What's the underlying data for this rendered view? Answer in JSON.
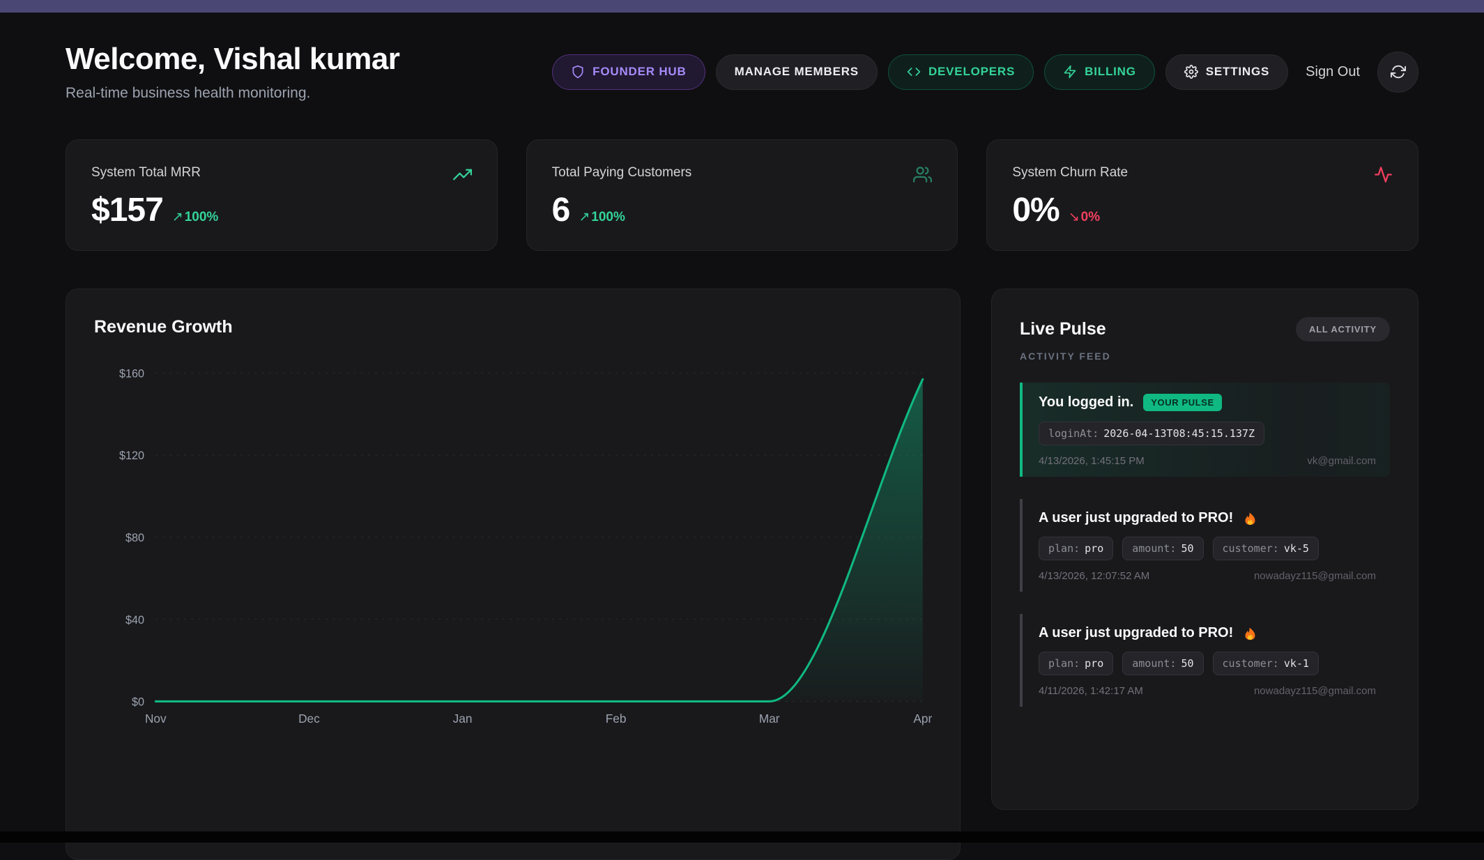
{
  "colors": {
    "accent_green": "#10b981",
    "accent_purple": "#a78bfa",
    "accent_red": "#f43f5e",
    "topbar": "#4b4775"
  },
  "header": {
    "title": "Welcome, Vishal kumar",
    "subtitle": "Real-time business health monitoring.",
    "nav": {
      "founder_hub": "FOUNDER HUB",
      "manage_members": "MANAGE MEMBERS",
      "developers": "DEVELOPERS",
      "billing": "BILLING",
      "settings": "SETTINGS",
      "sign_out": "Sign Out"
    }
  },
  "stats": [
    {
      "label": "System Total MRR",
      "value": "$157",
      "arrow": "↗",
      "delta": "100%",
      "icon": "trending-up-icon"
    },
    {
      "label": "Total Paying Customers",
      "value": "6",
      "arrow": "↗",
      "delta": "100%",
      "icon": "users-icon"
    },
    {
      "label": "System Churn Rate",
      "value": "0%",
      "arrow": "↘",
      "delta": "0%",
      "icon": "activity-icon"
    }
  ],
  "revenue": {
    "title": "Revenue Growth"
  },
  "chart_data": {
    "type": "area",
    "x": [
      "Nov",
      "Dec",
      "Jan",
      "Feb",
      "Mar",
      "Apr"
    ],
    "series": [
      {
        "name": "MRR",
        "values": [
          0,
          0,
          0,
          0,
          0,
          157
        ]
      }
    ],
    "title": "Revenue Growth",
    "xlabel": "",
    "ylabel": "",
    "y_ticks": [
      "$0",
      "$40",
      "$80",
      "$120",
      "$160"
    ],
    "ylim": [
      0,
      160
    ],
    "grid": "dashed",
    "legend": "none",
    "line_color": "#10b981"
  },
  "live_pulse": {
    "title": "Live Pulse",
    "filter": "ALL ACTIVITY",
    "subtitle": "ACTIVITY FEED",
    "items": [
      {
        "title": "You logged in.",
        "badge": "YOUR PULSE",
        "chips": [
          {
            "key": "loginAt:",
            "value": "2026-04-13T08:45:15.137Z"
          }
        ],
        "timestamp": "4/13/2026, 1:45:15 PM",
        "email": "vk@gmail.com"
      },
      {
        "title": "A user just upgraded to PRO!",
        "icon": "fire-icon",
        "chips": [
          {
            "key": "plan:",
            "value": "pro"
          },
          {
            "key": "amount:",
            "value": "50"
          },
          {
            "key": "customer:",
            "value": "vk-5"
          }
        ],
        "timestamp": "4/13/2026, 12:07:52 AM",
        "email": "nowadayz115@gmail.com"
      },
      {
        "title": "A user just upgraded to PRO!",
        "icon": "fire-icon",
        "chips": [
          {
            "key": "plan:",
            "value": "pro"
          },
          {
            "key": "amount:",
            "value": "50"
          },
          {
            "key": "customer:",
            "value": "vk-1"
          }
        ],
        "timestamp": "4/11/2026, 1:42:17 AM",
        "email": "nowadayz115@gmail.com"
      }
    ]
  }
}
